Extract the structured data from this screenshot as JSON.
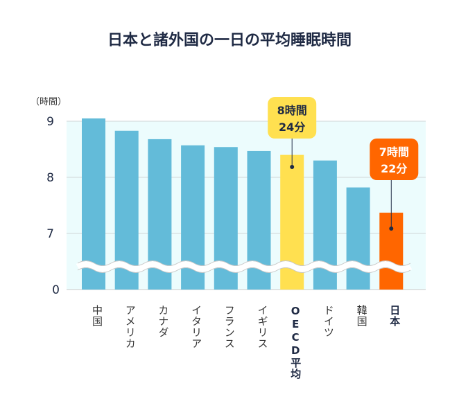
{
  "chart_data": {
    "type": "bar",
    "title": "日本と諸外国の一日の平均睡眠時間",
    "ylabel": "（時間）",
    "categories": [
      "中国",
      "アメリカ",
      "カナダ",
      "イタリア",
      "フランス",
      "イギリス",
      "OECD平均",
      "ドイツ",
      "韓国",
      "日本"
    ],
    "values": [
      9.05,
      8.83,
      8.68,
      8.57,
      8.54,
      8.47,
      8.4,
      8.3,
      7.82,
      7.37
    ],
    "yticks": [
      "9",
      "8",
      "7",
      "0"
    ],
    "axis_break": "between 0 and 7",
    "ylim": [
      0,
      9.3
    ],
    "grid": true,
    "highlight": {
      "OECD平均": "#ffe050",
      "日本": "#ff6600"
    },
    "bar_color": "#63bbd9",
    "annotations": [
      {
        "category": "OECD平均",
        "line1": "8時間",
        "line2": "24分",
        "color": "#ffe050",
        "text_color": "#1f2a44"
      },
      {
        "category": "日本",
        "line1": "7時間",
        "line2": "22分",
        "color": "#ff6600",
        "text_color": "#ffffff"
      }
    ]
  }
}
